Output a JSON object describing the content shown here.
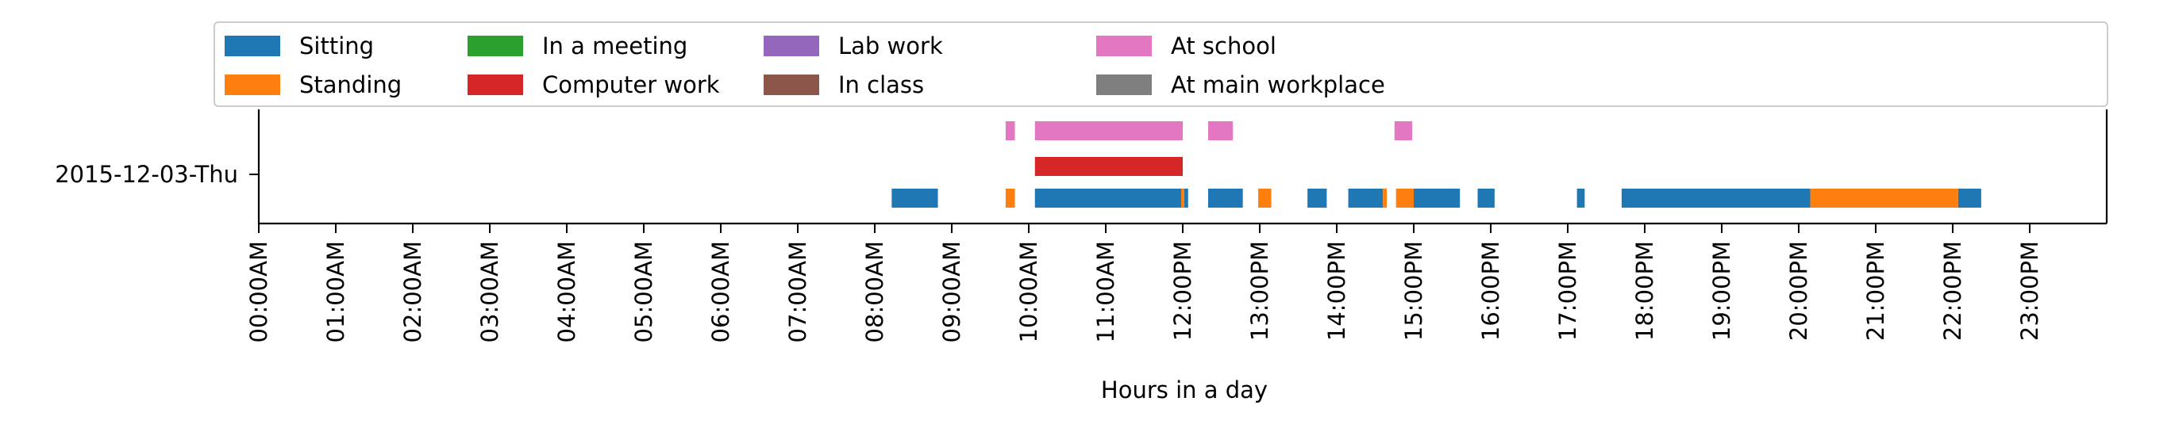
{
  "chart_data": {
    "type": "bar",
    "subtype": "horizontal-timeline",
    "xlabel": "Hours in a day",
    "ylabel": "",
    "xlim": [
      0,
      24
    ],
    "grid": false,
    "legend_placement": "top",
    "y_category": "2015-12-03-Thu",
    "x_ticks": [
      "00:00AM",
      "01:00AM",
      "02:00AM",
      "03:00AM",
      "04:00AM",
      "05:00AM",
      "06:00AM",
      "07:00AM",
      "08:00AM",
      "09:00AM",
      "10:00AM",
      "11:00AM",
      "12:00PM",
      "13:00PM",
      "14:00PM",
      "15:00PM",
      "16:00PM",
      "17:00PM",
      "18:00PM",
      "19:00PM",
      "20:00PM",
      "21:00PM",
      "22:00PM",
      "23:00PM"
    ],
    "series": [
      {
        "name": "Sitting",
        "color": "#1f77b4",
        "row": 0,
        "intervals": [
          [
            8.22,
            8.82
          ],
          [
            10.08,
            12.07
          ],
          [
            12.33,
            12.78
          ],
          [
            13.62,
            13.87
          ],
          [
            14.15,
            14.6
          ],
          [
            15.0,
            15.6
          ],
          [
            15.83,
            16.05
          ],
          [
            17.12,
            17.22
          ],
          [
            17.7,
            20.15
          ],
          [
            22.07,
            22.37
          ]
        ]
      },
      {
        "name": "Standing",
        "color": "#ff7f0e",
        "row": 0,
        "intervals": [
          [
            9.7,
            9.82
          ],
          [
            11.98,
            12.02
          ],
          [
            12.98,
            13.15
          ],
          [
            14.6,
            14.65
          ],
          [
            14.77,
            15.0
          ],
          [
            20.15,
            22.07
          ]
        ]
      },
      {
        "name": "In a meeting",
        "color": "#2ca02c",
        "row": 1,
        "intervals": []
      },
      {
        "name": "Computer work",
        "color": "#d62728",
        "row": 1,
        "intervals": [
          [
            10.08,
            12.0
          ]
        ]
      },
      {
        "name": "Lab work",
        "color": "#9467bd",
        "row": 2,
        "intervals": []
      },
      {
        "name": "In class",
        "color": "#8c564b",
        "row": 2,
        "intervals": []
      },
      {
        "name": "At school",
        "color": "#e377c2",
        "row": 2,
        "intervals": [
          [
            9.7,
            9.82
          ],
          [
            10.08,
            12.0
          ],
          [
            12.33,
            12.65
          ],
          [
            14.75,
            14.98
          ]
        ]
      },
      {
        "name": "At main workplace",
        "color": "#7f7f7f",
        "row": 2,
        "intervals": []
      }
    ]
  }
}
